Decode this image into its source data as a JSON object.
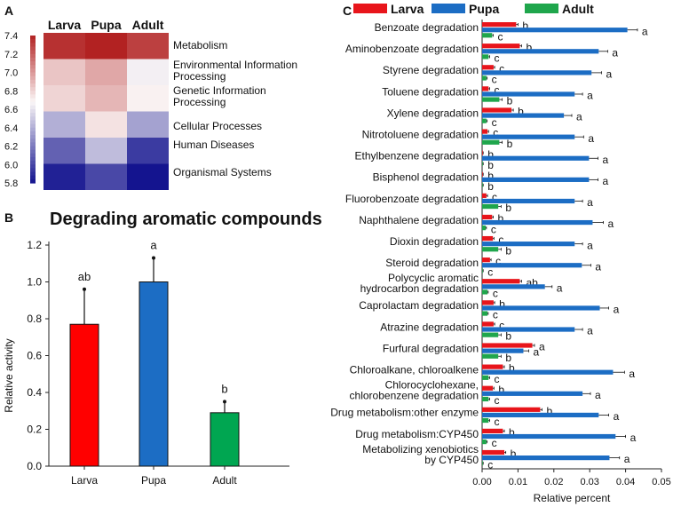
{
  "panelA": {
    "label": "A",
    "columns": [
      "Larva",
      "Pupa",
      "Adult"
    ],
    "rows": [
      "Metabolism",
      "Environmental Information Processing",
      "Genetic Information Processing",
      "Cellular Processes",
      "Human Diseases",
      "Organismal Systems"
    ],
    "values": [
      [
        7.35,
        7.45,
        7.3
      ],
      [
        6.85,
        6.95,
        6.65
      ],
      [
        6.8,
        6.9,
        6.7
      ],
      [
        6.4,
        6.75,
        6.35
      ],
      [
        6.1,
        6.45,
        5.95
      ],
      [
        5.85,
        6.0,
        5.8
      ]
    ],
    "scale_ticks": [
      "7.4",
      "7.2",
      "7.0",
      "6.8",
      "6.6",
      "6.4",
      "6.2",
      "6.0",
      "5.8"
    ],
    "scale_range": [
      5.8,
      7.4
    ],
    "colors": {
      "low": "#14148f",
      "mid": "#fbf7f7",
      "high": "#b22222"
    }
  },
  "chart_data": [
    {
      "type": "bar",
      "panel": "B",
      "title": "Degrading aromatic compounds",
      "categories": [
        "Larva",
        "Pupa",
        "Adult"
      ],
      "values": [
        0.77,
        1.0,
        0.29
      ],
      "errors": [
        0.19,
        0.13,
        0.06
      ],
      "letters": [
        "ab",
        "a",
        "b"
      ],
      "colors": [
        "#ff0000",
        "#1c6dc4",
        "#00a651"
      ],
      "ylabel": "Relative activity",
      "xlabel": "",
      "ylim": [
        0,
        1.2
      ],
      "yticks": [
        "0.0",
        "0.2",
        "0.4",
        "0.6",
        "0.8",
        "1.0",
        "1.2"
      ]
    },
    {
      "type": "bar",
      "orientation": "horizontal",
      "panel": "C",
      "xlabel": "Relative percent",
      "xlim": [
        0,
        0.05
      ],
      "xticks": [
        "0.00",
        "0.01",
        "0.02",
        "0.03",
        "0.04",
        "0.05"
      ],
      "legend": [
        {
          "name": "Larva",
          "color": "#e8151b"
        },
        {
          "name": "Pupa",
          "color": "#1c6dc4"
        },
        {
          "name": "Adult",
          "color": "#1fa64c"
        }
      ],
      "categories": [
        "Benzoate degradation",
        "Aminobenzoate degradation",
        "Styrene degradation",
        "Toluene degradation",
        "Xylene degradation",
        "Nitrotoluene degradation",
        "Ethylbenzene degradation",
        "Bisphenol degradation",
        "Fluorobenzoate degradation",
        "Naphthalene degradation",
        "Dioxin degradation",
        "Steroid degradation",
        "Polycyclic aromatic hydrocarbon degradation",
        "Caprolactam degradation",
        "Atrazine degradation",
        "Furfural degradation",
        "Chloroalkane, chloroalkene",
        "Chlorocyclohexane, chlorobenzene degradation",
        "Drug metabolism:other enzyme",
        "Drug metabolism:CYP450",
        "Metabolizing xenobiotics by CYP450"
      ],
      "category_lines": [
        [
          "Benzoate degradation"
        ],
        [
          "Aminobenzoate degradation"
        ],
        [
          "Styrene degradation"
        ],
        [
          "Toluene degradation"
        ],
        [
          "Xylene degradation"
        ],
        [
          "Nitrotoluene degradation"
        ],
        [
          "Ethylbenzene degradation"
        ],
        [
          "Bisphenol degradation"
        ],
        [
          "Fluorobenzoate degradation"
        ],
        [
          "Naphthalene degradation"
        ],
        [
          "Dioxin degradation"
        ],
        [
          "Steroid degradation"
        ],
        [
          "Polycyclic aromatic",
          "hydrocarbon degradation"
        ],
        [
          "Caprolactam degradation"
        ],
        [
          "Atrazine degradation"
        ],
        [
          "Furfural degradation"
        ],
        [
          "Chloroalkane, chloroalkene"
        ],
        [
          "Chlorocyclohexane,",
          "chlorobenzene degradation"
        ],
        [
          "Drug metabolism:other enzyme"
        ],
        [
          "Drug metabolism:CYP450"
        ],
        [
          "Metabolizing xenobiotics",
          "by CYP450"
        ]
      ],
      "series": [
        {
          "name": "Larva",
          "values": [
            0.0095,
            0.0105,
            0.0032,
            0.0018,
            0.0082,
            0.0015,
            0.0002,
            0.0002,
            0.0012,
            0.0028,
            0.003,
            0.0022,
            0.0105,
            0.0032,
            0.0032,
            0.014,
            0.0058,
            0.003,
            0.0162,
            0.0058,
            0.0062
          ],
          "errors": [
            0.0005,
            0.0005,
            0.0003,
            0.0003,
            0.0005,
            0.0003,
            0.0001,
            0.0001,
            0.0003,
            0.0003,
            0.0003,
            0.0003,
            0.0005,
            0.0003,
            0.0003,
            0.0006,
            0.0004,
            0.0003,
            0.0005,
            0.0004,
            0.0004
          ],
          "letters": [
            "b",
            "b",
            "c",
            "c",
            "b",
            "c",
            "b",
            "b",
            "c",
            "b",
            "c",
            "c",
            "ab",
            "b",
            "c",
            "a",
            "b",
            "b",
            "b",
            "b",
            "b"
          ]
        },
        {
          "name": "Pupa",
          "values": [
            0.0405,
            0.0325,
            0.0305,
            0.0258,
            0.0228,
            0.0258,
            0.0298,
            0.0298,
            0.0258,
            0.0308,
            0.0258,
            0.0278,
            0.0175,
            0.0328,
            0.0258,
            0.0115,
            0.0365,
            0.028,
            0.0325,
            0.0372,
            0.0355
          ],
          "errors": [
            0.0028,
            0.0025,
            0.0028,
            0.0022,
            0.0022,
            0.0025,
            0.0025,
            0.0025,
            0.0022,
            0.003,
            0.0022,
            0.0025,
            0.002,
            0.0025,
            0.0022,
            0.0015,
            0.0032,
            0.0022,
            0.0028,
            0.0028,
            0.0028
          ],
          "letters": [
            "a",
            "a",
            "a",
            "a",
            "a",
            "a",
            "a",
            "a",
            "a",
            "a",
            "a",
            "a",
            "a",
            "a",
            "a",
            "a",
            "a",
            "a",
            "a",
            "a",
            "a"
          ]
        },
        {
          "name": "Adult",
          "values": [
            0.0028,
            0.0018,
            0.0012,
            0.0048,
            0.0012,
            0.0048,
            0.0002,
            0.0002,
            0.0045,
            0.001,
            0.0045,
            0.0002,
            0.0015,
            0.0015,
            0.0045,
            0.0045,
            0.0018,
            0.0018,
            0.0018,
            0.0012,
            0.0002
          ],
          "errors": [
            0.0003,
            0.0003,
            0.0002,
            0.0008,
            0.0002,
            0.0008,
            0.0001,
            0.0001,
            0.0008,
            0.0002,
            0.0008,
            0.0001,
            0.0002,
            0.0002,
            0.0008,
            0.0008,
            0.0003,
            0.0003,
            0.0003,
            0.0002,
            0.0001
          ],
          "letters": [
            "c",
            "c",
            "c",
            "b",
            "c",
            "b",
            "b",
            "b",
            "b",
            "c",
            "b",
            "c",
            "c",
            "c",
            "b",
            "b",
            "c",
            "c",
            "c",
            "c",
            "c"
          ]
        }
      ]
    }
  ],
  "panel_labels": {
    "b": "B",
    "c": "C"
  }
}
